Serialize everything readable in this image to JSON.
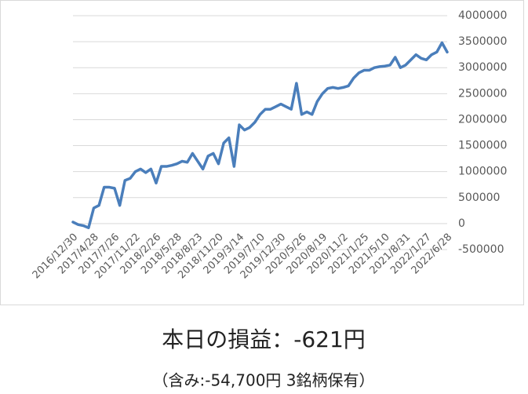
{
  "chart_data": {
    "type": "line",
    "categories": [
      "2016/12/30",
      null,
      null,
      null,
      "2017/4/28",
      null,
      null,
      null,
      "2017/7/26",
      null,
      null,
      null,
      "2017/11/22",
      null,
      null,
      null,
      "2018/2/26",
      null,
      null,
      null,
      "2018/5/28",
      null,
      null,
      null,
      "2018/8/23",
      null,
      null,
      null,
      "2018/11/20",
      null,
      null,
      null,
      "2019/3/14",
      null,
      null,
      null,
      "2019/7/10",
      null,
      null,
      null,
      "2019/12/30",
      null,
      null,
      null,
      "2020/5/26",
      null,
      null,
      null,
      "2020/8/19",
      null,
      null,
      null,
      "2020/11/2",
      null,
      null,
      null,
      "2021/1/25",
      null,
      null,
      null,
      "2021/5/10",
      null,
      null,
      null,
      "2021/8/31",
      null,
      null,
      null,
      "2022/1/27",
      null,
      null,
      null,
      "2022/6/28"
    ],
    "values": [
      30000,
      -20000,
      -40000,
      -80000,
      300000,
      350000,
      700000,
      700000,
      680000,
      350000,
      830000,
      870000,
      1000000,
      1050000,
      980000,
      1050000,
      780000,
      1100000,
      1100000,
      1120000,
      1150000,
      1200000,
      1180000,
      1350000,
      1200000,
      1050000,
      1300000,
      1350000,
      1150000,
      1550000,
      1650000,
      1100000,
      1900000,
      1800000,
      1850000,
      1950000,
      2100000,
      2200000,
      2200000,
      2250000,
      2300000,
      2250000,
      2200000,
      2700000,
      2100000,
      2150000,
      2100000,
      2350000,
      2500000,
      2600000,
      2620000,
      2600000,
      2620000,
      2650000,
      2800000,
      2900000,
      2950000,
      2950000,
      3000000,
      3020000,
      3030000,
      3050000,
      3200000,
      3000000,
      3050000,
      3150000,
      3250000,
      3180000,
      3150000,
      3250000,
      3300000,
      3480000,
      3300000
    ],
    "color": "#4a7ebb",
    "ylim": [
      -500000,
      4000000
    ],
    "yticks": [
      -500000,
      0,
      500000,
      1000000,
      1500000,
      2000000,
      2500000,
      3000000,
      3500000,
      4000000
    ],
    "grid": true
  },
  "summary": {
    "today": "本日の損益：-621円",
    "detail": "（含み:-54,700円  3銘柄保有）"
  }
}
